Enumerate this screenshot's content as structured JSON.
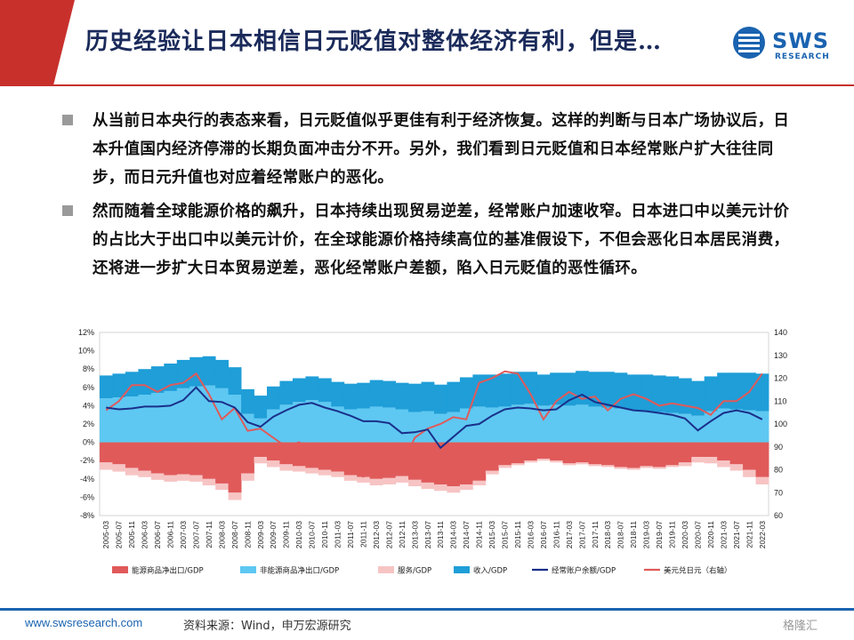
{
  "title": "历史经验让日本相信日元贬值对整体经济有利，但是…",
  "logo": {
    "name": "SWS",
    "sub": "RESEARCH"
  },
  "bullets": [
    "从当前日本央行的表态来看，日元贬值似乎更佳有利于经济恢复。这样的判断与日本广场协议后，日本升值国内经济停滞的长期负面冲击分不开。另外，我们看到日元贬值和日本经常账户扩大往往同步，而日元升值也对应着经常账户的恶化。",
    "然而随着全球能源价格的飙升，日本持续出现贸易逆差，经常账户加速收窄。日本进口中以美元计价的占比大于出口中以美元计价，在全球能源价格持续高位的基准假设下，不但会恶化日本居民消费，还将进一步扩大日本贸易逆差，恶化经常账户差额，陷入日元贬值的恶性循环。"
  ],
  "footer": {
    "url": "www.swsresearch.com",
    "source": "资料来源：Wind，申万宏源研究",
    "watermark": "格隆汇"
  },
  "colors": {
    "accent": "#c8302c",
    "brand": "#1a63b0",
    "title": "#1a2a5a"
  },
  "chart_data": {
    "type": "area",
    "left_axis": {
      "min": -8,
      "max": 12,
      "ticks": [
        "-8%",
        "-6%",
        "-4%",
        "-2%",
        "0%",
        "2%",
        "4%",
        "6%",
        "8%",
        "10%",
        "12%"
      ]
    },
    "right_axis": {
      "min": 60,
      "max": 140,
      "ticks": [
        "60",
        "70",
        "80",
        "90",
        "100",
        "110",
        "120",
        "130",
        "140"
      ]
    },
    "x_ticks": [
      "2005-03",
      "2005-07",
      "2005-11",
      "2006-03",
      "2006-07",
      "2006-11",
      "2007-03",
      "2007-07",
      "2007-11",
      "2008-03",
      "2008-07",
      "2008-11",
      "2009-03",
      "2009-07",
      "2009-11",
      "2010-03",
      "2010-07",
      "2010-11",
      "2011-03",
      "2011-07",
      "2011-11",
      "2012-03",
      "2012-07",
      "2012-11",
      "2013-03",
      "2013-07",
      "2013-11",
      "2014-03",
      "2014-07",
      "2014-11",
      "2015-03",
      "2015-07",
      "2015-11",
      "2016-03",
      "2016-07",
      "2016-11",
      "2017-03",
      "2017-07",
      "2017-11",
      "2018-03",
      "2018-07",
      "2018-11",
      "2019-03",
      "2019-07",
      "2019-11",
      "2020-03",
      "2020-07",
      "2020-11",
      "2021-03",
      "2021-07",
      "2021-11",
      "2022-03"
    ],
    "series": [
      {
        "name": "能源商品净出口/GDP",
        "color": "#e05a5a",
        "values": [
          -2.2,
          -2.4,
          -2.8,
          -3.1,
          -3.4,
          -3.6,
          -3.5,
          -3.6,
          -4.0,
          -4.5,
          -5.5,
          -3.4,
          -1.6,
          -2.0,
          -2.4,
          -2.6,
          -2.8,
          -3.0,
          -3.2,
          -3.6,
          -3.8,
          -4.0,
          -3.9,
          -3.7,
          -4.1,
          -4.4,
          -4.6,
          -4.8,
          -4.6,
          -4.2,
          -3.1,
          -2.5,
          -2.3,
          -2.0,
          -1.8,
          -2.0,
          -2.3,
          -2.2,
          -2.4,
          -2.5,
          -2.7,
          -2.8,
          -2.6,
          -2.7,
          -2.5,
          -2.2,
          -1.6,
          -1.6,
          -2.0,
          -2.4,
          -3.0,
          -3.8
        ]
      },
      {
        "name": "非能源商品净出口/GDP",
        "color": "#5ec8f2",
        "values": [
          4.8,
          4.9,
          5.0,
          5.2,
          5.4,
          5.6,
          5.9,
          6.1,
          6.2,
          5.9,
          5.2,
          3.1,
          2.6,
          3.6,
          4.1,
          4.4,
          4.6,
          4.4,
          3.9,
          3.6,
          3.7,
          3.9,
          3.8,
          3.6,
          3.3,
          3.4,
          3.1,
          3.3,
          3.7,
          3.9,
          3.8,
          3.9,
          4.1,
          4.2,
          4.0,
          4.1,
          4.0,
          4.1,
          3.9,
          3.8,
          3.7,
          3.5,
          3.4,
          3.3,
          3.2,
          3.1,
          2.9,
          3.4,
          3.7,
          3.6,
          3.5,
          3.4
        ]
      },
      {
        "name": "服务/GDP",
        "color": "#f7c4c4",
        "values": [
          -0.8,
          -0.8,
          -0.8,
          -0.7,
          -0.7,
          -0.7,
          -0.7,
          -0.7,
          -0.7,
          -0.7,
          -0.8,
          -0.8,
          -0.7,
          -0.7,
          -0.7,
          -0.6,
          -0.6,
          -0.6,
          -0.6,
          -0.6,
          -0.6,
          -0.7,
          -0.7,
          -0.7,
          -0.7,
          -0.7,
          -0.7,
          -0.7,
          -0.6,
          -0.5,
          -0.4,
          -0.3,
          -0.2,
          -0.2,
          -0.2,
          -0.2,
          -0.2,
          -0.2,
          -0.2,
          -0.2,
          -0.2,
          -0.2,
          -0.2,
          -0.2,
          -0.2,
          -0.4,
          -0.6,
          -0.7,
          -0.7,
          -0.7,
          -0.8,
          -0.8
        ]
      },
      {
        "name": "收入/GDP",
        "color": "#1f9ed8",
        "values": [
          2.5,
          2.6,
          2.7,
          2.8,
          2.9,
          3.0,
          3.1,
          3.2,
          3.2,
          3.1,
          3.0,
          2.7,
          2.5,
          2.5,
          2.6,
          2.6,
          2.6,
          2.6,
          2.7,
          2.8,
          2.8,
          2.9,
          2.9,
          2.9,
          3.1,
          3.2,
          3.2,
          3.3,
          3.4,
          3.5,
          3.6,
          3.6,
          3.6,
          3.5,
          3.4,
          3.5,
          3.6,
          3.7,
          3.8,
          3.9,
          3.9,
          3.9,
          4.0,
          4.0,
          4.0,
          3.9,
          3.8,
          3.8,
          3.9,
          4.0,
          4.1,
          4.1
        ]
      },
      {
        "name": "经常账户余额/GDP",
        "color": "#1a2f8a",
        "values": [
          3.8,
          3.6,
          3.7,
          3.9,
          3.9,
          4.0,
          4.6,
          6.0,
          4.5,
          4.4,
          3.8,
          2.2,
          1.7,
          2.8,
          3.5,
          4.1,
          4.3,
          3.8,
          3.4,
          2.9,
          2.3,
          2.3,
          2.1,
          1.0,
          1.1,
          1.4,
          -0.6,
          0.6,
          1.8,
          2.0,
          2.9,
          3.6,
          3.8,
          3.7,
          3.5,
          3.6,
          4.6,
          5.2,
          4.4,
          4.1,
          3.8,
          3.5,
          3.4,
          3.2,
          3.0,
          2.6,
          1.3,
          2.3,
          3.2,
          3.5,
          3.2,
          2.5
        ]
      },
      {
        "name": "美元兑日元（右轴）",
        "color": "#e05a5a",
        "axis": "right",
        "values": [
          106,
          110,
          117,
          117,
          114,
          117,
          118,
          122,
          113,
          102,
          107,
          97,
          98,
          94,
          90,
          92,
          88,
          82,
          82,
          79,
          77,
          82,
          78,
          82,
          94,
          98,
          100,
          103,
          102,
          118,
          120,
          123,
          122,
          113,
          102,
          110,
          114,
          111,
          112,
          106,
          111,
          113,
          111,
          108,
          109,
          108,
          107,
          104,
          110,
          110,
          114,
          122
        ]
      }
    ]
  }
}
